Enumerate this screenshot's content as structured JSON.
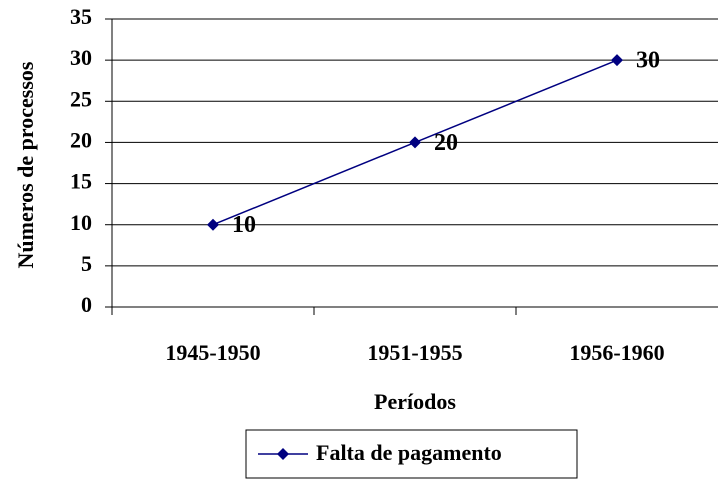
{
  "chart_data": {
    "type": "line",
    "categories": [
      "1945-1950",
      "1951-1955",
      "1956-1960"
    ],
    "series": [
      {
        "name": "Falta de pagamento",
        "color": "#000080",
        "values": [
          10,
          20,
          30
        ]
      }
    ],
    "ylim": [
      0,
      35
    ],
    "yticks": [
      0,
      5,
      10,
      15,
      20,
      25,
      30,
      35
    ],
    "grid": true,
    "xlabel": "Períodos",
    "ylabel": "Números de processos",
    "legend": "bottom"
  }
}
